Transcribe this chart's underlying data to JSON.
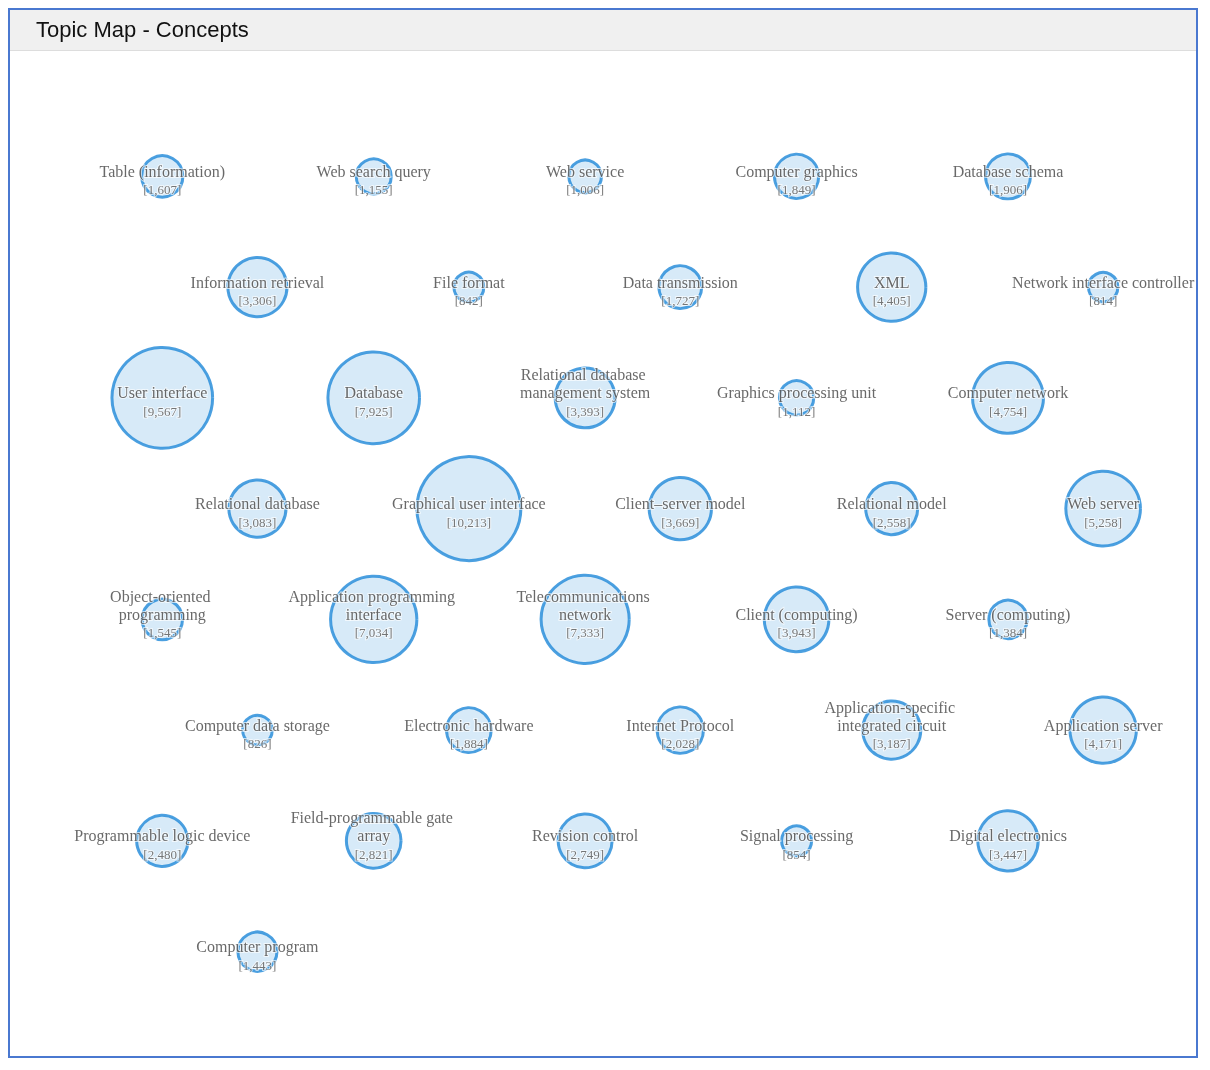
{
  "chart_data": {
    "type": "other",
    "title": "Topic Map -  Concepts",
    "color": "#1f88d8",
    "value_labels": [
      "[1,607]",
      "[1,155]",
      "[1,006]",
      "[1,849]",
      "[1,906]",
      "[3,306]",
      "[842]",
      "[1,727]",
      "[4,405]",
      "[814]",
      "[9,567]",
      "[7,925]",
      "[3,393]",
      "[1,112]",
      "[4,754]",
      "[3,083]",
      "[10,213]",
      "[3,669]",
      "[2,558]",
      "[5,258]",
      "[1,545]",
      "[7,034]",
      "[7,333]",
      "[3,943]",
      "[1,384]",
      "[826]",
      "[1,884]",
      "[2,028]",
      "[3,187]",
      "[4,171]",
      "[2,480]",
      "[2,821]",
      "[2,749]",
      "[854]",
      "[3,447]",
      "[1,443]"
    ],
    "categories": [
      "Table (information)",
      "Web search query",
      "Web service",
      "Computer graphics",
      "Database schema",
      "Information retrieval",
      "File format",
      "Data transmission",
      "XML",
      "Network interface controller",
      "User interface",
      "Database",
      "Relational database management system",
      "Graphics processing unit",
      "Computer network",
      "Relational database",
      "Graphical user interface",
      "Client–server model",
      "Relational model",
      "Web server",
      "Object-oriented programming",
      "Application programming interface",
      "Telecommunications network",
      "Client (computing)",
      "Server (computing)",
      "Computer data storage",
      "Electronic hardware",
      "Internet Protocol",
      "Application-specific integrated circuit",
      "Application server",
      "Programmable logic device",
      "Field-programmable gate array",
      "Revision control",
      "Signal processing",
      "Digital electronics",
      "Computer program"
    ],
    "values": [
      1607,
      1155,
      1006,
      1849,
      1906,
      3306,
      842,
      1727,
      4405,
      814,
      9567,
      7925,
      3393,
      1112,
      4754,
      3083,
      10213,
      3669,
      2558,
      5258,
      1545,
      7034,
      7333,
      3943,
      1384,
      826,
      1884,
      2028,
      3187,
      4171,
      2480,
      2821,
      2749,
      854,
      3447,
      1443
    ]
  }
}
